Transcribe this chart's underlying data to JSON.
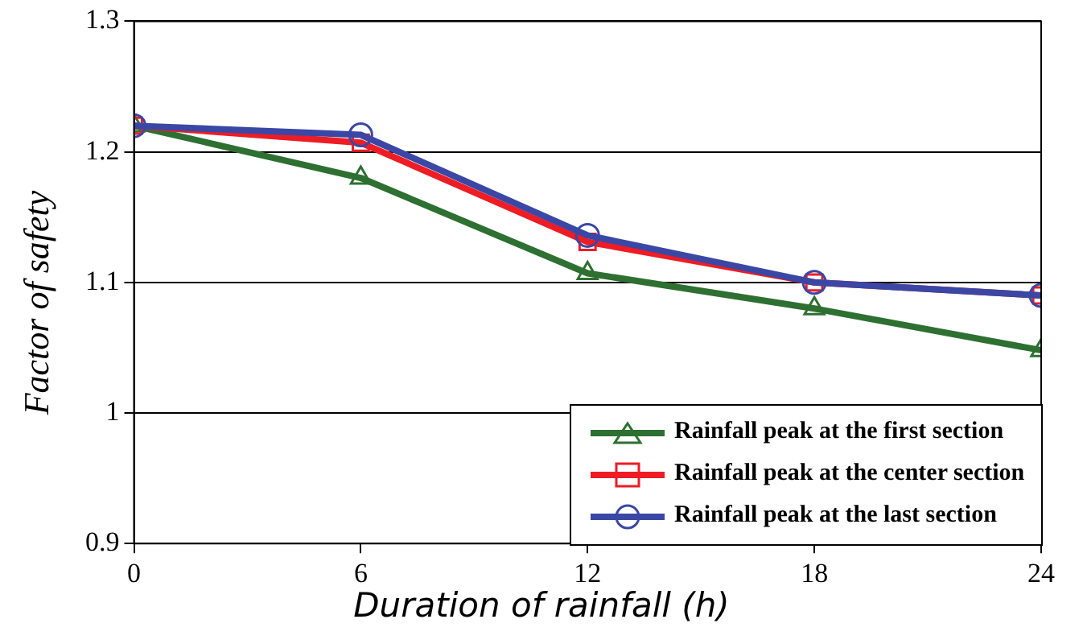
{
  "chart_data": {
    "type": "line",
    "xlabel": "Duration of rainfall (h)",
    "ylabel": "Factor of safety",
    "x": [
      0,
      6,
      12,
      18,
      24
    ],
    "series": [
      {
        "name": "Rainfall peak at the first section",
        "color": "#2e7031",
        "marker": "triangle",
        "values": [
          1.22,
          1.18,
          1.107,
          1.08,
          1.048
        ]
      },
      {
        "name": "Rainfall peak at the center section",
        "color": "#ee1c24",
        "marker": "square",
        "values": [
          1.22,
          1.207,
          1.131,
          1.1,
          1.09
        ]
      },
      {
        "name": "Rainfall peak at the last section",
        "color": "#3a47a5",
        "marker": "circle",
        "values": [
          1.22,
          1.213,
          1.136,
          1.1,
          1.09
        ]
      }
    ],
    "xlim": [
      0,
      24
    ],
    "xticks": [
      0,
      6,
      12,
      18,
      24
    ],
    "ylim": [
      0.9,
      1.3
    ],
    "yticks": [
      0.9,
      1,
      1.1,
      1.2,
      1.3
    ],
    "grid": "y",
    "legend": "bottom right"
  }
}
